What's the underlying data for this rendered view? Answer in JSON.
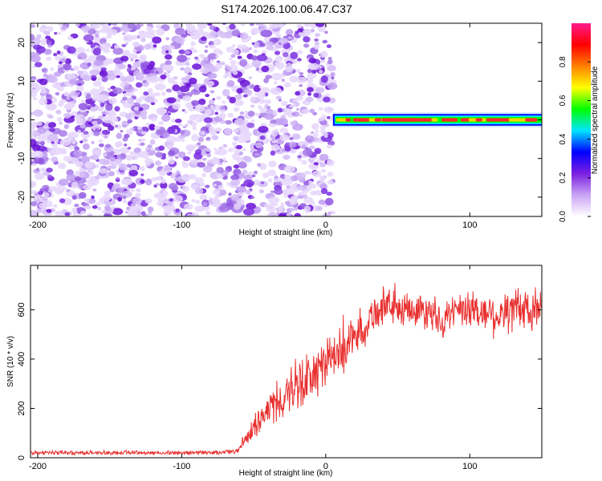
{
  "title": "S174.2026.100.06.47.C37",
  "chart_data": [
    {
      "type": "heatmap",
      "name": "spectrogram",
      "xlabel": "Height of straight line (km)",
      "ylabel": "Frequency (Hz)",
      "xlim": [
        -205,
        150
      ],
      "ylim": [
        -25,
        25
      ],
      "xticks": [
        -200,
        -100,
        0,
        100
      ],
      "xtick_labels": [
        "-200",
        "-100",
        "0",
        "100"
      ],
      "yticks": [
        -20,
        -10,
        0,
        10,
        20
      ],
      "ytick_labels": [
        "-20",
        "-10",
        "0",
        "10",
        "20"
      ],
      "noise_region_x": [
        -205,
        5
      ],
      "signal_band": {
        "x_start": 5,
        "x_end": 150,
        "freq_center": 0,
        "freq_halfwidth": 1.5
      },
      "colorbar": {
        "label": "Normalized spectral amplitude",
        "range": [
          0.0,
          1.0
        ],
        "ticks": [
          0.0,
          0.2,
          0.4,
          0.6,
          0.8
        ],
        "tick_labels": [
          "0.0",
          "0.2",
          "0.4",
          "0.6",
          "0.8"
        ],
        "colors": [
          "#ffffff",
          "#c9a3f5",
          "#7b1fe0",
          "#0000ff",
          "#00e5ff",
          "#00ff00",
          "#ffff00",
          "#ff8000",
          "#ff0000",
          "#ff1a8c"
        ]
      }
    },
    {
      "type": "line",
      "name": "snr",
      "xlabel": "Height of straight line (km)",
      "ylabel": "SNR (10 * v/v)",
      "xlim": [
        -205,
        150
      ],
      "ylim": [
        0,
        780
      ],
      "xticks": [
        -200,
        -100,
        0,
        100
      ],
      "xtick_labels": [
        "-200",
        "-100",
        "0",
        "100"
      ],
      "yticks": [
        0,
        200,
        400,
        600
      ],
      "ytick_labels": [
        "0",
        "200",
        "400",
        "600"
      ],
      "color": "#e8302f",
      "series": [
        {
          "name": "SNR",
          "x": [
            -205,
            -150,
            -100,
            -70,
            -60,
            -50,
            -40,
            -30,
            -20,
            -10,
            0,
            10,
            20,
            30,
            40,
            50,
            60,
            70,
            80,
            90,
            100,
            110,
            120,
            130,
            140,
            150
          ],
          "mean": [
            20,
            20,
            20,
            22,
            30,
            120,
            200,
            240,
            280,
            330,
            380,
            430,
            490,
            560,
            620,
            600,
            610,
            590,
            560,
            580,
            600,
            590,
            580,
            600,
            600,
            590
          ],
          "spread": [
            10,
            10,
            10,
            10,
            15,
            60,
            90,
            110,
            130,
            130,
            120,
            110,
            110,
            100,
            90,
            80,
            80,
            80,
            90,
            90,
            90,
            100,
            110,
            110,
            110,
            110
          ]
        }
      ]
    }
  ]
}
